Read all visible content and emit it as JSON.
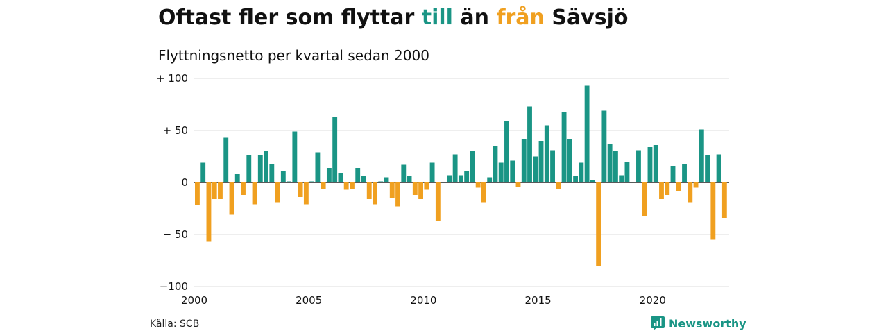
{
  "title": {
    "part1": "Oftast fler som flyttar ",
    "part2": "till",
    "part3": " än ",
    "part4": "från",
    "part5": " Sävsjö"
  },
  "subtitle": "Flyttningsnetto per kvartal sedan 2000",
  "source": "Källa: SCB",
  "brand": "Newsworthy",
  "colors": {
    "positive": "#1a9585",
    "negative": "#f0a020"
  },
  "chart_data": {
    "type": "bar",
    "title": "Oftast fler som flyttar till än från Sävsjö",
    "subtitle": "Flyttningsnetto per kvartal sedan 2000",
    "ylim": [
      -100,
      100
    ],
    "yticks": [
      {
        "value": 100,
        "label": "+ 100"
      },
      {
        "value": 50,
        "label": "+  50"
      },
      {
        "value": 0,
        "label": "0"
      },
      {
        "value": -50,
        "label": "− 50"
      },
      {
        "value": -100,
        "label": "−100"
      }
    ],
    "xticks": [
      "2000",
      "2005",
      "2010",
      "2015",
      "2020"
    ],
    "start_year": 2000,
    "values": [
      -22,
      19,
      -57,
      -16,
      -16,
      43,
      -31,
      8,
      -12,
      26,
      -21,
      26,
      30,
      18,
      -19,
      11,
      1,
      49,
      -14,
      -21,
      1,
      29,
      -6,
      14,
      63,
      9,
      -7,
      -6,
      14,
      6,
      -16,
      -21,
      1,
      5,
      -15,
      -23,
      17,
      6,
      -12,
      -16,
      -7,
      19,
      -37,
      0,
      7,
      27,
      7,
      11,
      30,
      -5,
      -19,
      5,
      35,
      19,
      59,
      21,
      -4,
      42,
      73,
      25,
      40,
      55,
      31,
      -6,
      68,
      42,
      6,
      19,
      93,
      2,
      -80,
      69,
      37,
      30,
      7,
      20,
      0,
      31,
      -32,
      34,
      36,
      -16,
      -12,
      16,
      -8,
      18,
      -19,
      -5,
      51,
      26,
      -55,
      27,
      -34
    ]
  }
}
